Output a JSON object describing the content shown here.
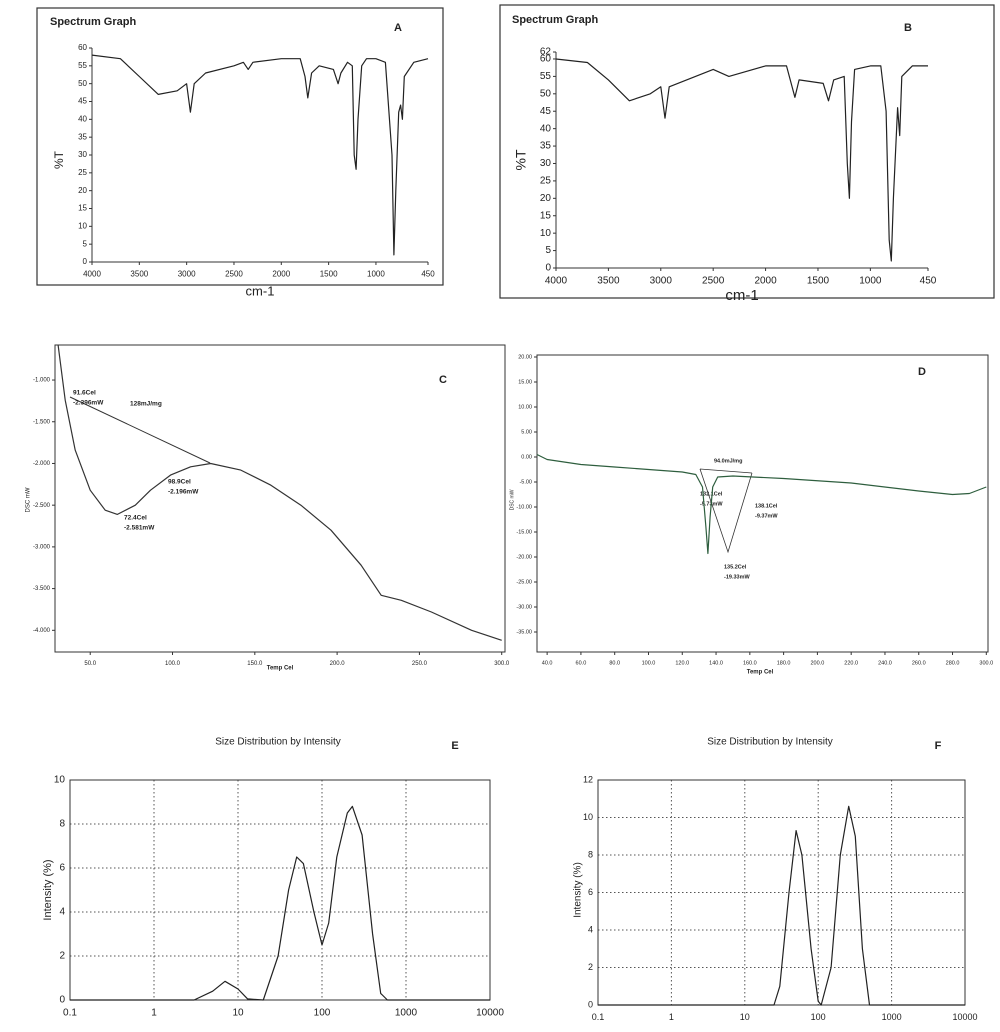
{
  "chart_data": [
    {
      "type": "line",
      "title": "Spectrum Graph",
      "label": "A",
      "xlabel": "cm-1",
      "ylabel": "%T",
      "color": "#222222",
      "grid": false,
      "x": [
        4000,
        3700,
        3500,
        3300,
        3100,
        3000,
        2960,
        2920,
        2800,
        2500,
        2400,
        2350,
        2300,
        2000,
        1800,
        1750,
        1720,
        1680,
        1600,
        1450,
        1400,
        1370,
        1300,
        1250,
        1230,
        1210,
        1190,
        1150,
        1100,
        1000,
        900,
        830,
        810,
        790,
        760,
        740,
        720,
        700,
        600,
        450
      ],
      "values": [
        58,
        57,
        52,
        47,
        48,
        50,
        42,
        50,
        53,
        55,
        56,
        54,
        56,
        57,
        57,
        52,
        46,
        53,
        55,
        54,
        50,
        53,
        56,
        55,
        30,
        26,
        40,
        55,
        57,
        57,
        56,
        30,
        2,
        20,
        42,
        44,
        40,
        52,
        56,
        57
      ],
      "xlim": [
        4000,
        450
      ],
      "ylim": [
        0,
        60
      ],
      "xticks": [
        4000,
        3500,
        3000,
        2500,
        2000,
        1500,
        1000,
        450
      ],
      "yticks": [
        0,
        5,
        10,
        15,
        20,
        25,
        30,
        35,
        40,
        45,
        50,
        55,
        60
      ]
    },
    {
      "type": "line",
      "title": "Spectrum Graph",
      "label": "B",
      "xlabel": "cm-1",
      "ylabel": "%T",
      "color": "#222222",
      "grid": false,
      "x": [
        4000,
        3700,
        3500,
        3300,
        3100,
        3000,
        2960,
        2920,
        2500,
        2350,
        2000,
        1800,
        1720,
        1680,
        1450,
        1400,
        1350,
        1250,
        1220,
        1200,
        1180,
        1150,
        1000,
        900,
        850,
        820,
        800,
        780,
        740,
        720,
        700,
        600,
        450
      ],
      "values": [
        60,
        59,
        54,
        48,
        50,
        52,
        43,
        52,
        57,
        55,
        58,
        58,
        49,
        54,
        53,
        48,
        54,
        55,
        30,
        20,
        42,
        57,
        58,
        58,
        45,
        8,
        2,
        20,
        46,
        38,
        55,
        58,
        58
      ],
      "xlim": [
        4000,
        450
      ],
      "ylim": [
        0,
        62
      ],
      "xticks": [
        4000,
        3500,
        3000,
        2500,
        2000,
        1500,
        1000,
        450
      ],
      "yticks": [
        0,
        5,
        10,
        15,
        20,
        25,
        30,
        35,
        40,
        45,
        50,
        55,
        60,
        62
      ]
    },
    {
      "type": "line",
      "label": "C",
      "xlabel": "Temp Cel",
      "ylabel": "DSC mW",
      "color": "#333333",
      "grid": false,
      "annotations": [
        "91.6Cel",
        "-2.396mW",
        "128mJ/mg",
        "98.9Cel",
        "-2.196mW",
        "72.4Cel",
        "-2.581mW"
      ],
      "x": [
        30.5,
        34.8,
        40.9,
        50,
        59.1,
        66.5,
        77.4,
        86.6,
        98.8,
        111,
        123.2,
        141.5,
        159.8,
        178,
        196.3,
        214.6,
        226.8,
        239,
        257.3,
        281.7,
        300
      ],
      "values": [
        -0.58,
        -1.24,
        -1.84,
        -2.32,
        -2.56,
        -2.61,
        -2.5,
        -2.32,
        -2.14,
        -2.04,
        -2.0,
        -2.08,
        -2.26,
        -2.5,
        -2.8,
        -3.22,
        -3.58,
        -3.64,
        -3.78,
        -4.0,
        -4.12
      ],
      "xlim": [
        28.6,
        302
      ],
      "ylim": [
        -4.26,
        -0.58
      ],
      "xticks": [
        {
          "value": 50,
          "label": "50.0"
        },
        {
          "value": 100,
          "label": "100.0"
        },
        {
          "value": 150,
          "label": "150.0"
        },
        {
          "value": 200,
          "label": "200.0"
        },
        {
          "value": 250,
          "label": "250.0"
        },
        {
          "value": 300,
          "label": "300.0"
        }
      ],
      "yticks": [
        {
          "value": -1,
          "label": "-1.000"
        },
        {
          "value": -1.5,
          "label": "-1.500"
        },
        {
          "value": -2,
          "label": "-2.000"
        },
        {
          "value": -2.5,
          "label": "-2.500"
        },
        {
          "value": -3,
          "label": "-3.000"
        },
        {
          "value": -3.5,
          "label": "-3.500"
        },
        {
          "value": -4,
          "label": "-4.000"
        }
      ]
    },
    {
      "type": "line",
      "label": "D",
      "xlabel": "Temp Cel",
      "ylabel": "DSC mW",
      "color": "#2e5e3e",
      "grid": false,
      "annotations": [
        "94.0mJ/mg",
        "132.1Cel",
        "-5.73mW",
        "138.1Cel",
        "-9.37mW",
        "135.2Cel",
        "-19.33mW"
      ],
      "x": [
        34,
        40,
        60,
        80,
        100,
        120,
        128,
        132,
        134,
        135.2,
        136.5,
        138,
        141,
        150,
        180,
        220,
        260,
        280,
        290,
        300
      ],
      "values": [
        0.5,
        -0.5,
        -1.5,
        -2.0,
        -2.5,
        -3.0,
        -3.5,
        -6,
        -14,
        -19.3,
        -12,
        -6,
        -4,
        -3.8,
        -4.3,
        -5.2,
        -6.8,
        -7.5,
        -7.3,
        -6.0
      ],
      "xlim": [
        34,
        301
      ],
      "ylim": [
        -39,
        20.4
      ],
      "xticks": [
        {
          "value": 40,
          "label": "40.0"
        },
        {
          "value": 60,
          "label": "60.0"
        },
        {
          "value": 80,
          "label": "80.0"
        },
        {
          "value": 100,
          "label": "100.0"
        },
        {
          "value": 120,
          "label": "120.0"
        },
        {
          "value": 140,
          "label": "140.0"
        },
        {
          "value": 160,
          "label": "160.0"
        },
        {
          "value": 180,
          "label": "180.0"
        },
        {
          "value": 200,
          "label": "200.0"
        },
        {
          "value": 220,
          "label": "220.0"
        },
        {
          "value": 240,
          "label": "240.0"
        },
        {
          "value": 260,
          "label": "260.0"
        },
        {
          "value": 280,
          "label": "280.0"
        },
        {
          "value": 300,
          "label": "300.0"
        }
      ],
      "yticks": [
        {
          "value": 20,
          "label": "20.00"
        },
        {
          "value": 15,
          "label": "15.00"
        },
        {
          "value": 10,
          "label": "10.00"
        },
        {
          "value": 5,
          "label": "5.00"
        },
        {
          "value": 0,
          "label": "0.00"
        },
        {
          "value": -5,
          "label": "-5.00"
        },
        {
          "value": -10,
          "label": "-10.00"
        },
        {
          "value": -15,
          "label": "-15.00"
        },
        {
          "value": -20,
          "label": "-20.00"
        },
        {
          "value": -25,
          "label": "-25.00"
        },
        {
          "value": -30,
          "label": "-30.00"
        },
        {
          "value": -35,
          "label": "-35.00"
        }
      ]
    },
    {
      "type": "line",
      "title": "Size Distribution by Intensity",
      "label": "E",
      "ylabel": "Intensity (%)",
      "color": "#222222",
      "grid": true,
      "xscale": "log",
      "x": [
        0.1,
        3,
        5,
        7,
        10,
        13,
        20,
        30,
        40,
        50,
        60,
        80,
        100,
        120,
        150,
        200,
        230,
        300,
        400,
        500,
        600,
        10000
      ],
      "values": [
        0,
        0,
        0.4,
        0.85,
        0.5,
        0.05,
        0,
        2,
        5,
        6.5,
        6.2,
        4,
        2.5,
        3.5,
        6.5,
        8.5,
        8.8,
        7.5,
        3,
        0.3,
        0,
        0
      ],
      "xlim": [
        0.1,
        10000
      ],
      "ylim": [
        0,
        10
      ],
      "xticks": [
        0.1,
        1,
        10,
        100,
        1000,
        10000
      ],
      "yticks": [
        0,
        2,
        4,
        6,
        8,
        10
      ]
    },
    {
      "type": "line",
      "title": "Size Distribution by Intensity",
      "label": "F",
      "ylabel": "Intensity (%)",
      "color": "#222222",
      "grid": true,
      "xscale": "log",
      "x": [
        0.1,
        25,
        30,
        40,
        50,
        60,
        80,
        100,
        110,
        150,
        200,
        260,
        320,
        400,
        500,
        10000
      ],
      "values": [
        0,
        0,
        1,
        6,
        9.3,
        8,
        3,
        0.2,
        0,
        2,
        8,
        10.6,
        9,
        3,
        0,
        0
      ],
      "xlim": [
        0.1,
        10000
      ],
      "ylim": [
        0,
        12
      ],
      "xticks": [
        0.1,
        1,
        10,
        100,
        1000,
        10000
      ],
      "yticks": [
        0,
        2,
        4,
        6,
        8,
        10,
        12
      ]
    }
  ]
}
